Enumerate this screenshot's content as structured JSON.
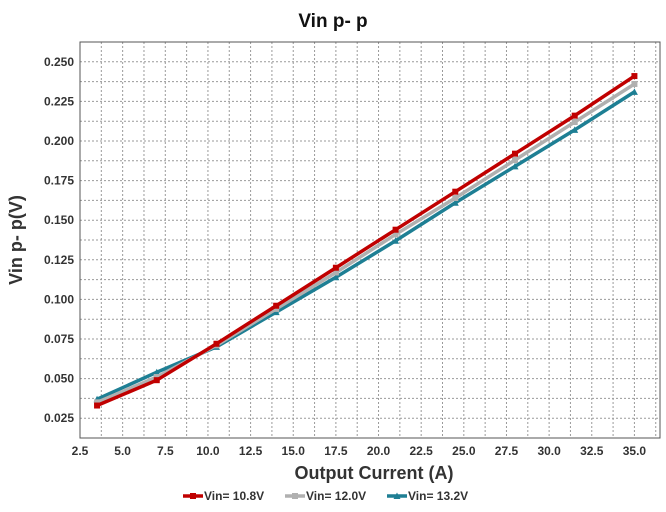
{
  "chart_data": {
    "type": "line",
    "title": "Vin p- p",
    "xlabel": "Output Current (A)",
    "ylabel": "Vin p- p(V)",
    "xlim": [
      2.5,
      36.5
    ],
    "ylim": [
      0.0125,
      0.2625
    ],
    "x_ticks": [
      "2.5",
      "5.0",
      "7.5",
      "10.0",
      "12.5",
      "15.0",
      "17.5",
      "20.0",
      "22.5",
      "25.0",
      "27.5",
      "30.0",
      "32.5",
      "35.0"
    ],
    "y_ticks": [
      "0.025",
      "0.050",
      "0.075",
      "0.100",
      "0.125",
      "0.150",
      "0.175",
      "0.200",
      "0.225",
      "0.250"
    ],
    "grid": true,
    "legend_position": "bottom",
    "x": [
      3.5,
      7.0,
      10.5,
      14.0,
      17.5,
      21.0,
      24.5,
      28.0,
      31.5,
      35.0
    ],
    "series": [
      {
        "name": "Vin= 10.8V",
        "color": "#c00000",
        "marker": "square",
        "values": [
          0.033,
          0.049,
          0.072,
          0.096,
          0.12,
          0.144,
          0.168,
          0.192,
          0.216,
          0.241
        ]
      },
      {
        "name": "Vin= 12.0V",
        "color": "#b0b0b0",
        "marker": "square",
        "values": [
          0.035,
          0.051,
          0.071,
          0.094,
          0.117,
          0.141,
          0.164,
          0.188,
          0.212,
          0.236
        ]
      },
      {
        "name": "Vin= 13.2V",
        "color": "#1e7f94",
        "marker": "triangle",
        "values": [
          0.037,
          0.054,
          0.07,
          0.092,
          0.114,
          0.137,
          0.161,
          0.184,
          0.207,
          0.231
        ]
      }
    ]
  }
}
